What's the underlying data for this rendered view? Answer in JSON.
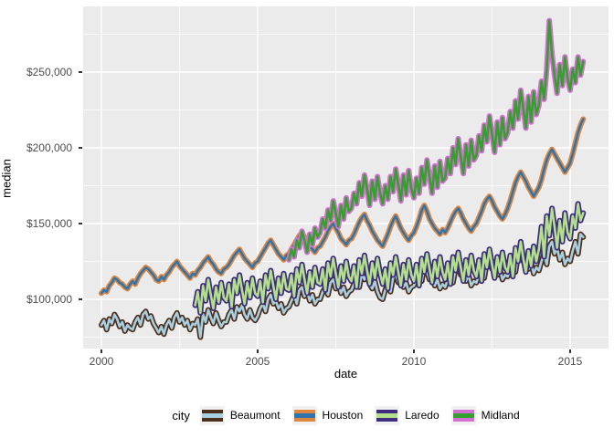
{
  "chart_data": {
    "type": "line",
    "title": "",
    "xlabel": "date",
    "ylabel": "median",
    "legend_title": "city",
    "legend_position": "bottom",
    "grid": "on",
    "panel_bg": "#EBEBEB",
    "grid_color": "#FFFFFF",
    "tick_text_color": "#4D4D4D",
    "value_unit": "USD thousands",
    "x_axis": {
      "tick_labels": [
        "2000",
        "2005",
        "2010",
        "2015"
      ],
      "tick_years": [
        2000,
        2005,
        2010,
        2015
      ],
      "minor_years": [
        2002.5,
        2007.5,
        2012.5
      ],
      "range_years": [
        1999.4,
        2016.2
      ]
    },
    "y_axis": {
      "tick_labels": [
        "$100,000",
        "$150,000",
        "$200,000",
        "$250,000"
      ],
      "tick_values": [
        100,
        150,
        200,
        250
      ],
      "minor_values": [
        75,
        125,
        175,
        225,
        275
      ],
      "range_values": [
        67,
        293
      ]
    },
    "series": [
      {
        "name": "Beaumont",
        "inner_color": "#A8CEE2",
        "outer_color": "#4C2F1B",
        "start_year": 2000,
        "values": [
          83,
          86,
          80,
          87,
          84,
          90,
          87,
          82,
          85,
          79,
          83,
          81,
          80,
          85,
          88,
          83,
          90,
          92,
          87,
          89,
          84,
          81,
          78,
          82,
          77,
          83,
          86,
          81,
          88,
          91,
          85,
          88,
          83,
          86,
          80,
          84,
          83,
          87,
          75,
          90,
          85,
          93,
          88,
          84,
          91,
          86,
          82,
          85,
          85,
          90,
          93,
          87,
          95,
          92,
          96,
          90,
          87,
          93,
          88,
          86,
          89,
          94,
          97,
          92,
          100,
          103,
          97,
          99,
          94,
          97,
          91,
          94,
          95,
          99,
          103,
          97,
          106,
          108,
          102,
          105,
          99,
          103,
          97,
          100,
          100,
          105,
          108,
          103,
          111,
          113,
          107,
          110,
          104,
          108,
          102,
          105,
          106,
          110,
          114,
          108,
          117,
          113,
          116,
          110,
          107,
          112,
          105,
          101,
          100,
          106,
          110,
          105,
          114,
          117,
          111,
          114,
          108,
          111,
          105,
          108,
          109,
          114,
          118,
          112,
          122,
          118,
          113,
          116,
          109,
          113,
          107,
          110,
          108,
          113,
          117,
          111,
          120,
          123,
          116,
          119,
          112,
          116,
          109,
          112,
          111,
          116,
          120,
          114,
          124,
          127,
          120,
          123,
          116,
          120,
          113,
          116,
          115,
          120,
          125,
          118,
          129,
          132,
          125,
          128,
          120,
          124,
          117,
          121,
          119,
          125,
          130,
          123,
          135,
          138,
          130,
          134,
          126,
          131,
          123,
          127,
          125,
          132,
          138,
          130,
          143,
          141
        ]
      },
      {
        "name": "Houston",
        "inner_color": "#2E75B0",
        "outer_color": "#E0873F",
        "start_year": 2000,
        "values": [
          104,
          106,
          105,
          109,
          111,
          114,
          113,
          111,
          110,
          108,
          107,
          110,
          112,
          110,
          114,
          117,
          119,
          121,
          120,
          118,
          116,
          113,
          112,
          115,
          113,
          116,
          118,
          121,
          123,
          125,
          122,
          120,
          118,
          116,
          114,
          117,
          116,
          119,
          121,
          124,
          126,
          128,
          125,
          123,
          120,
          118,
          117,
          120,
          121,
          123,
          126,
          129,
          131,
          133,
          130,
          127,
          125,
          123,
          121,
          124,
          125,
          128,
          131,
          134,
          137,
          139,
          136,
          133,
          130,
          128,
          126,
          129,
          130,
          133,
          136,
          139,
          142,
          144,
          141,
          138,
          135,
          133,
          131,
          134,
          135,
          138,
          141,
          145,
          148,
          150,
          147,
          144,
          140,
          138,
          136,
          139,
          140,
          143,
          147,
          151,
          154,
          156,
          152,
          149,
          145,
          142,
          139,
          137,
          135,
          139,
          143,
          148,
          152,
          155,
          151,
          147,
          144,
          141,
          139,
          142,
          144,
          148,
          153,
          159,
          162,
          158,
          153,
          150,
          147,
          145,
          143,
          146,
          144,
          147,
          151,
          155,
          158,
          160,
          157,
          153,
          150,
          147,
          145,
          148,
          150,
          154,
          158,
          163,
          166,
          168,
          165,
          161,
          158,
          155,
          153,
          156,
          160,
          165,
          171,
          177,
          181,
          184,
          181,
          178,
          174,
          171,
          168,
          171,
          174,
          179,
          186,
          192,
          196,
          199,
          196,
          193,
          190,
          187,
          184,
          187,
          190,
          196,
          203,
          210,
          215,
          219
        ]
      },
      {
        "name": "Laredo",
        "inner_color": "#B2DF8A",
        "outer_color": "#3F2B80",
        "start_year": 2003,
        "values": [
          96,
          105,
          91,
          109,
          99,
          113,
          103,
          94,
          108,
          98,
          111,
          101,
          99,
          110,
          95,
          113,
          104,
          116,
          106,
          97,
          111,
          101,
          114,
          104,
          102,
          112,
          98,
          116,
          107,
          119,
          109,
          100,
          114,
          104,
          117,
          107,
          106,
          116,
          102,
          120,
          111,
          123,
          113,
          104,
          118,
          108,
          121,
          111,
          110,
          120,
          106,
          124,
          115,
          127,
          117,
          108,
          122,
          112,
          125,
          115,
          112,
          122,
          108,
          126,
          117,
          129,
          119,
          110,
          124,
          114,
          127,
          117,
          110,
          120,
          107,
          124,
          116,
          128,
          118,
          109,
          123,
          113,
          126,
          116,
          112,
          123,
          109,
          127,
          118,
          130,
          120,
          111,
          125,
          115,
          128,
          118,
          113,
          124,
          110,
          128,
          119,
          131,
          121,
          112,
          126,
          116,
          129,
          119,
          115,
          126,
          112,
          130,
          121,
          133,
          123,
          114,
          128,
          118,
          131,
          121,
          118,
          129,
          115,
          134,
          125,
          138,
          127,
          118,
          132,
          122,
          135,
          125,
          133,
          148,
          128,
          155,
          142,
          160,
          148,
          134,
          152,
          138,
          157,
          144,
          140,
          155,
          147,
          163,
          152,
          157
        ]
      },
      {
        "name": "Midland",
        "inner_color": "#36A02E",
        "outer_color": "#D46FD4",
        "start_year": 2006,
        "values": [
          126,
          133,
          128,
          139,
          134,
          145,
          139,
          131,
          143,
          136,
          147,
          141,
          144,
          153,
          147,
          159,
          152,
          165,
          157,
          148,
          162,
          153,
          167,
          158,
          160,
          170,
          163,
          177,
          168,
          182,
          173,
          162,
          178,
          166,
          181,
          170,
          163,
          175,
          166,
          181,
          171,
          186,
          176,
          165,
          182,
          169,
          185,
          173,
          167,
          180,
          170,
          187,
          176,
          192,
          181,
          170,
          188,
          174,
          191,
          178,
          180,
          193,
          183,
          200,
          189,
          206,
          194,
          183,
          202,
          188,
          205,
          192,
          195,
          208,
          198,
          215,
          204,
          221,
          209,
          197,
          217,
          202,
          220,
          206,
          210,
          224,
          213,
          231,
          219,
          238,
          226,
          213,
          234,
          217,
          237,
          222,
          228,
          244,
          232,
          252,
          284,
          262,
          248,
          236,
          255,
          241,
          260,
          246,
          238,
          252,
          243,
          260,
          248,
          257
        ]
      }
    ]
  }
}
